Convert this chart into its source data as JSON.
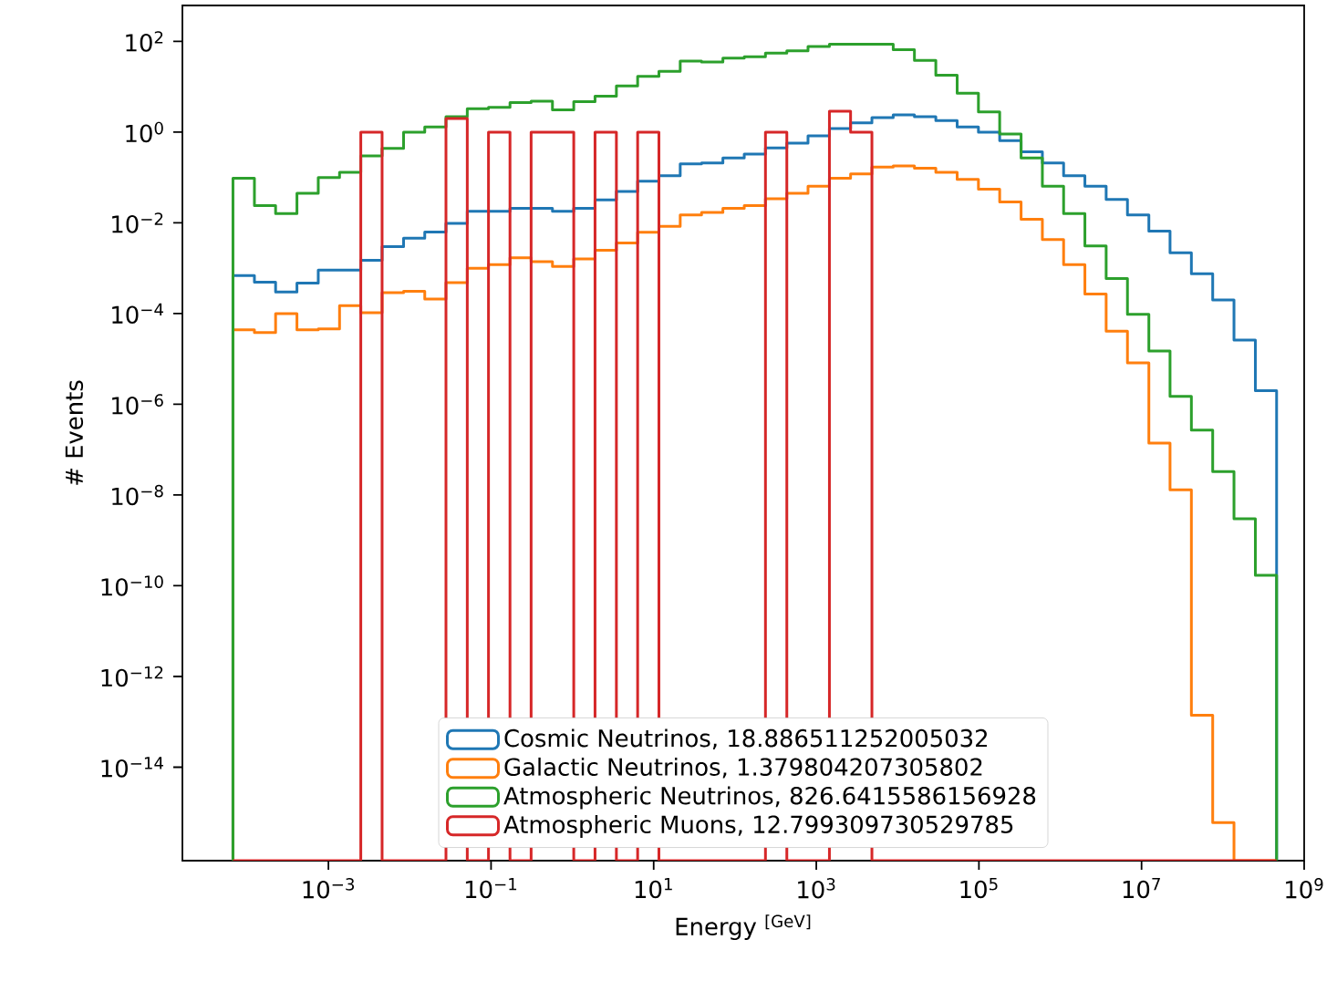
{
  "chart_data": {
    "type": "histogram",
    "xlabel": "Energy $^{[GeV]}$",
    "ylabel": "# Events",
    "log": "xy",
    "legend": "bottom",
    "bins": [
      6.7e-05,
      0.000123,
      0.000224,
      0.00041,
      0.00075,
      0.00137,
      0.0025,
      0.00457,
      0.0084,
      0.0153,
      0.0279,
      0.051,
      0.093,
      0.171,
      0.311,
      0.569,
      1.04,
      1.9,
      3.48,
      6.35,
      11.6,
      21.2,
      38.8,
      71,
      130,
      237,
      434,
      791,
      1450,
      2640,
      4830,
      8830,
      16100,
      29500,
      54000,
      98600,
      180000,
      330000,
      603000,
      1100000.0,
      2010000.0,
      3670000.0,
      6710000.0,
      12300000.0,
      22400000.0,
      41000000.0,
      75000000.0,
      137000000.0,
      251000000.0,
      458000000.0
    ],
    "series": [
      {
        "name": "Cosmic Neutrinos, 18.886511252005032",
        "color": "#1f77b4",
        "values": [
          0.00069,
          0.00049,
          0.0003,
          0.00047,
          0.00091,
          0.00091,
          0.0015,
          0.003,
          0.0046,
          0.0063,
          0.0098,
          0.018,
          0.018,
          0.021,
          0.021,
          0.018,
          0.021,
          0.032,
          0.049,
          0.083,
          0.11,
          0.2,
          0.21,
          0.27,
          0.33,
          0.45,
          0.57,
          0.83,
          1.2,
          1.6,
          2.1,
          2.4,
          2.2,
          1.8,
          1.3,
          1.0,
          0.65,
          0.37,
          0.21,
          0.11,
          0.064,
          0.033,
          0.015,
          0.0066,
          0.0022,
          0.00076,
          0.0002,
          2.6e-05,
          2e-06
        ]
      },
      {
        "name": "Galactic Neutrinos, 1.379804207305802",
        "color": "#ff7f0e",
        "values": [
          4.4e-05,
          3.8e-05,
          0.0001,
          4.4e-05,
          4.6e-05,
          0.00015,
          0.000105,
          0.00029,
          0.00031,
          0.00021,
          0.00048,
          0.001,
          0.0012,
          0.0017,
          0.0014,
          0.0011,
          0.0016,
          0.0025,
          0.0036,
          0.0062,
          0.0084,
          0.015,
          0.017,
          0.021,
          0.024,
          0.034,
          0.045,
          0.064,
          0.096,
          0.12,
          0.17,
          0.18,
          0.16,
          0.13,
          0.091,
          0.055,
          0.029,
          0.012,
          0.0043,
          0.0012,
          0.00027,
          4.1e-05,
          8.2e-06,
          1.4e-07,
          1.3e-08,
          1.4e-13,
          6e-16,
          null,
          null
        ]
      },
      {
        "name": "Atmospheric Neutrinos, 826.6415586156928",
        "color": "#2ca02c",
        "values": [
          0.096,
          0.024,
          0.016,
          0.045,
          0.1,
          0.13,
          0.3,
          0.44,
          1.0,
          1.3,
          2.2,
          3.3,
          3.5,
          4.5,
          4.8,
          3.1,
          4.7,
          6.2,
          10.4,
          17,
          22,
          37,
          35,
          43,
          46,
          55,
          62,
          77,
          87,
          87,
          87,
          66,
          38,
          18,
          7.2,
          2.8,
          0.91,
          0.27,
          0.064,
          0.016,
          0.0031,
          0.00059,
          9.6e-05,
          1.5e-05,
          1.5e-06,
          2.7e-07,
          3.3e-08,
          3e-09,
          1.7e-10
        ]
      },
      {
        "name": "Atmospheric Muons, 12.799309730529785",
        "color": "#d62728",
        "values": [
          null,
          null,
          null,
          null,
          null,
          null,
          1.0,
          null,
          null,
          null,
          2.0,
          null,
          1.0,
          null,
          1.0,
          1.0,
          null,
          1.0,
          null,
          1.0,
          null,
          null,
          null,
          null,
          null,
          1.0,
          null,
          null,
          2.9,
          1.0,
          null,
          null,
          null,
          null,
          null,
          null,
          null,
          null,
          null,
          null,
          null,
          null,
          null,
          null,
          null,
          null,
          null,
          null,
          null
        ]
      }
    ],
    "xlim": [
      1.6e-05,
      1000000000.0
    ],
    "ylim": [
      8.7e-17,
      620
    ],
    "xticks": [
      {
        "value": 0.001,
        "label": "10$^{−3}$"
      },
      {
        "value": 0.1,
        "label": "10$^{−1}$"
      },
      {
        "value": 10,
        "label": "10$^{1}$"
      },
      {
        "value": 1000,
        "label": "10$^{3}$"
      },
      {
        "value": 100000.0,
        "label": "10$^{5}$"
      },
      {
        "value": 10000000.0,
        "label": "10$^{7}$"
      },
      {
        "value": 1000000000.0,
        "label": "10$^{9}$"
      }
    ],
    "yticks": [
      {
        "value": 1e-14,
        "label": "10$^{−14}$"
      },
      {
        "value": 1e-12,
        "label": "10$^{−12}$"
      },
      {
        "value": 1e-10,
        "label": "10$^{−10}$"
      },
      {
        "value": 1e-08,
        "label": "10$^{−8}$"
      },
      {
        "value": 1e-06,
        "label": "10$^{−6}$"
      },
      {
        "value": 0.0001,
        "label": "10$^{−4}$"
      },
      {
        "value": 0.01,
        "label": "10$^{−2}$"
      },
      {
        "value": 1,
        "label": "10$^{0}$"
      },
      {
        "value": 100,
        "label": "10$^{2}$"
      }
    ]
  }
}
